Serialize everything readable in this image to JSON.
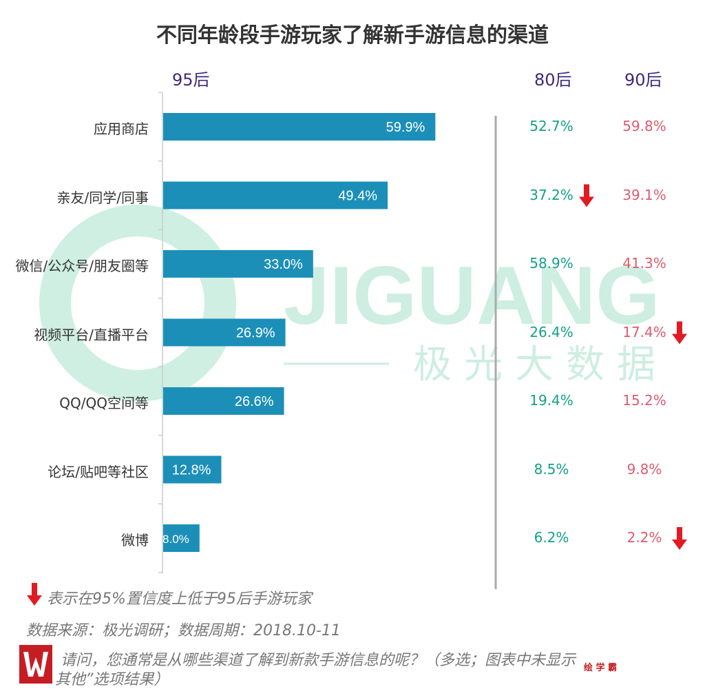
{
  "title": "不同年龄段手游玩家了解新手游信息的渠道",
  "column_headers": {
    "gen95": "95后",
    "gen80": "80后",
    "gen90": "90后"
  },
  "watermark": {
    "brand": "JIGUANG",
    "brand_cn": "极光大数据"
  },
  "colors": {
    "bar": "#1c8fb8",
    "gen80_text": "#13a08a",
    "gen90_text": "#e05a6e",
    "arrow": "#e11b22",
    "header": "#3d2a7a"
  },
  "chart_data": {
    "type": "bar",
    "orientation": "horizontal",
    "categories": [
      "应用商店",
      "亲友/同学/同事",
      "微信/公众号/朋友圈等",
      "视频平台/直播平台",
      "QQ/QQ空间等",
      "论坛/贴吧等社区",
      "微博"
    ],
    "series": [
      {
        "name": "95后",
        "values": [
          59.9,
          49.4,
          33.0,
          26.9,
          26.6,
          12.8,
          8.0
        ],
        "labels": [
          "59.9%",
          "49.4%",
          "33.0%",
          "26.9%",
          "26.6%",
          "12.8%",
          "8.0%"
        ]
      },
      {
        "name": "80后",
        "values": [
          52.7,
          37.2,
          58.9,
          26.4,
          19.4,
          8.5,
          6.2
        ],
        "labels": [
          "52.7%",
          "37.2%",
          "58.9%",
          "26.4%",
          "19.4%",
          "8.5%",
          "6.2%"
        ],
        "lower_flags": [
          false,
          true,
          false,
          false,
          false,
          false,
          false
        ]
      },
      {
        "name": "90后",
        "values": [
          59.8,
          39.1,
          41.3,
          17.4,
          15.2,
          9.8,
          2.2
        ],
        "labels": [
          "59.8%",
          "39.1%",
          "41.3%",
          "17.4%",
          "15.2%",
          "9.8%",
          "2.2%"
        ],
        "lower_flags": [
          false,
          false,
          false,
          true,
          false,
          false,
          true
        ]
      }
    ],
    "xlim": [
      0,
      100
    ]
  },
  "notes": {
    "arrow_legend": "表示在95%置信度上低于95后手游玩家",
    "source": "数据来源：极光调研；数据周期：2018.10-11",
    "question_line1": "请问，您通常是从哪些渠道了解到新款手游信息的呢？（多选；图表中未显示",
    "question_line2": "其他”选项结果）"
  },
  "corner_mark": "绘 学 霸"
}
